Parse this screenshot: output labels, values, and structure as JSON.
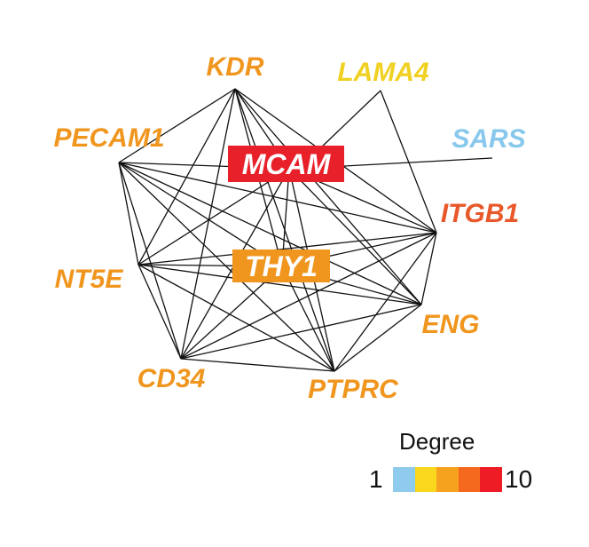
{
  "legend": {
    "title": "Degree",
    "min": "1",
    "max": "10",
    "colors": [
      "#8ecbec",
      "#f9d71c",
      "#f7a21e",
      "#f5691e",
      "#ee1c24"
    ]
  },
  "nodes": {
    "KDR": {
      "label": "KDR",
      "degree": 8,
      "color": "#f0961e"
    },
    "LAMA4": {
      "label": "LAMA4",
      "degree": 2,
      "color": "#f0d020"
    },
    "PECAM1": {
      "label": "PECAM1",
      "degree": 8,
      "color": "#f0961e"
    },
    "SARS": {
      "label": "SARS",
      "degree": 1,
      "color": "#87c8ec"
    },
    "MCAM": {
      "label": "MCAM",
      "degree": 10,
      "color": "#e8202a"
    },
    "ITGB1": {
      "label": "ITGB1",
      "degree": 9,
      "color": "#e8582a"
    },
    "THY1": {
      "label": "THY1",
      "degree": 8,
      "color": "#f0961e"
    },
    "NT5E": {
      "label": "NT5E",
      "degree": 8,
      "color": "#f0961e"
    },
    "ENG": {
      "label": "ENG",
      "degree": 8,
      "color": "#f0961e"
    },
    "CD34": {
      "label": "CD34",
      "degree": 8,
      "color": "#f0961e"
    },
    "PTPRC": {
      "label": "PTPRC",
      "degree": 8,
      "color": "#f0961e"
    }
  },
  "edges": [
    [
      "KDR",
      "PECAM1"
    ],
    [
      "KDR",
      "MCAM"
    ],
    [
      "KDR",
      "THY1"
    ],
    [
      "KDR",
      "ITGB1"
    ],
    [
      "KDR",
      "NT5E"
    ],
    [
      "KDR",
      "ENG"
    ],
    [
      "KDR",
      "CD34"
    ],
    [
      "KDR",
      "PTPRC"
    ],
    [
      "PECAM1",
      "MCAM"
    ],
    [
      "PECAM1",
      "THY1"
    ],
    [
      "PECAM1",
      "ITGB1"
    ],
    [
      "PECAM1",
      "NT5E"
    ],
    [
      "PECAM1",
      "ENG"
    ],
    [
      "PECAM1",
      "CD34"
    ],
    [
      "PECAM1",
      "PTPRC"
    ],
    [
      "MCAM",
      "THY1"
    ],
    [
      "MCAM",
      "ITGB1"
    ],
    [
      "MCAM",
      "NT5E"
    ],
    [
      "MCAM",
      "ENG"
    ],
    [
      "MCAM",
      "CD34"
    ],
    [
      "MCAM",
      "PTPRC"
    ],
    [
      "MCAM",
      "LAMA4"
    ],
    [
      "MCAM",
      "SARS"
    ],
    [
      "THY1",
      "ITGB1"
    ],
    [
      "THY1",
      "NT5E"
    ],
    [
      "THY1",
      "ENG"
    ],
    [
      "THY1",
      "CD34"
    ],
    [
      "THY1",
      "PTPRC"
    ],
    [
      "ITGB1",
      "NT5E"
    ],
    [
      "ITGB1",
      "ENG"
    ],
    [
      "ITGB1",
      "CD34"
    ],
    [
      "ITGB1",
      "PTPRC"
    ],
    [
      "ITGB1",
      "LAMA4"
    ],
    [
      "NT5E",
      "ENG"
    ],
    [
      "NT5E",
      "CD34"
    ],
    [
      "NT5E",
      "PTPRC"
    ],
    [
      "ENG",
      "CD34"
    ],
    [
      "ENG",
      "PTPRC"
    ],
    [
      "CD34",
      "PTPRC"
    ]
  ]
}
